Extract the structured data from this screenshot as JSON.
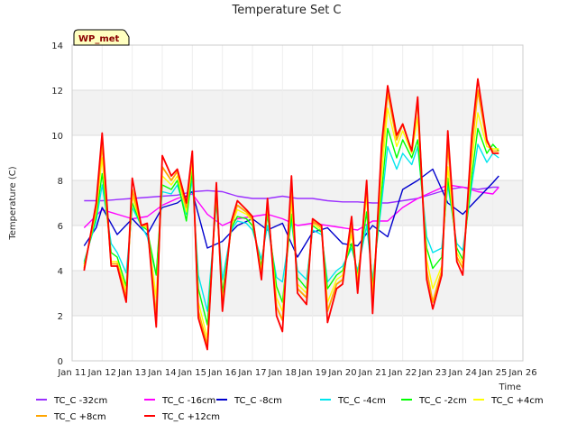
{
  "chart_data": {
    "type": "line",
    "title": "Temperature Set C",
    "xlabel": "Time",
    "ylabel": "Temperature (C)",
    "ylim": [
      0,
      14
    ],
    "xlim": [
      11,
      26
    ],
    "yticks": [
      0,
      2,
      4,
      6,
      8,
      10,
      12,
      14
    ],
    "xticks": [
      11,
      12,
      13,
      14,
      15,
      16,
      17,
      18,
      19,
      20,
      21,
      22,
      23,
      24,
      25,
      26
    ],
    "xtick_labels": [
      "Jan 11",
      "Jan 12",
      "Jan 13",
      "Jan 14",
      "Jan 15",
      "Jan 16",
      "Jan 17",
      "Jan 18",
      "Jan 19",
      "Jan 20",
      "Jan 21",
      "Jan 22",
      "Jan 23",
      "Jan 24",
      "Jan 25",
      "Jan 26"
    ],
    "grid": true,
    "legend_position": "bottom",
    "annotation": "WP_met",
    "series": [
      {
        "name": "TC_C -32cm",
        "color": "#9b30ff",
        "x": [
          11.4,
          12.0,
          13.0,
          14.0,
          14.5,
          15.0,
          15.5,
          16.0,
          16.5,
          17.0,
          17.5,
          18.0,
          18.5,
          19.0,
          19.5,
          20.0,
          20.5,
          21.0,
          21.5,
          22.0,
          22.5,
          23.0,
          23.5,
          24.0,
          24.5,
          25.0,
          25.2
        ],
        "y": [
          7.1,
          7.1,
          7.2,
          7.3,
          7.35,
          7.5,
          7.55,
          7.5,
          7.3,
          7.2,
          7.2,
          7.3,
          7.2,
          7.2,
          7.1,
          7.05,
          7.05,
          7.0,
          7.0,
          7.1,
          7.2,
          7.4,
          7.6,
          7.7,
          7.6,
          7.7,
          7.7
        ]
      },
      {
        "name": "TC_C -16cm",
        "color": "#ff00ff",
        "x": [
          11.4,
          12.0,
          12.5,
          13.0,
          13.5,
          14.0,
          14.5,
          15.0,
          15.5,
          16.0,
          16.5,
          17.0,
          17.5,
          18.0,
          18.5,
          19.0,
          19.5,
          20.0,
          20.5,
          21.0,
          21.5,
          22.0,
          22.5,
          23.0,
          23.5,
          24.0,
          24.5,
          25.0,
          25.2
        ],
        "y": [
          5.9,
          6.7,
          6.5,
          6.3,
          6.4,
          6.9,
          7.2,
          7.4,
          6.5,
          6.0,
          6.3,
          6.4,
          6.5,
          6.3,
          6.0,
          6.1,
          6.0,
          5.9,
          5.8,
          6.2,
          6.2,
          6.8,
          7.2,
          7.5,
          7.8,
          7.7,
          7.5,
          7.4,
          7.7
        ]
      },
      {
        "name": "TC_C -8cm",
        "color": "#0000cd",
        "x": [
          11.4,
          11.8,
          12.0,
          12.5,
          13.0,
          13.5,
          14.0,
          14.5,
          15.0,
          15.5,
          16.0,
          16.5,
          17.0,
          17.5,
          18.0,
          18.5,
          19.0,
          19.5,
          20.0,
          20.5,
          21.0,
          21.5,
          22.0,
          22.5,
          23.0,
          23.5,
          24.0,
          24.5,
          25.0,
          25.2
        ],
        "y": [
          5.1,
          5.9,
          6.8,
          5.6,
          6.3,
          5.6,
          6.8,
          7.0,
          7.5,
          5.0,
          5.3,
          6.0,
          6.3,
          5.8,
          6.1,
          4.6,
          5.7,
          5.9,
          5.2,
          5.1,
          6.0,
          5.5,
          7.6,
          8.0,
          8.5,
          7.0,
          6.5,
          7.2,
          7.9,
          8.2
        ]
      },
      {
        "name": "TC_C -4cm",
        "color": "#00e5ee",
        "x": [
          11.4,
          11.8,
          12.0,
          12.3,
          12.5,
          12.8,
          13.0,
          13.3,
          13.5,
          13.8,
          14.0,
          14.3,
          14.5,
          14.8,
          15.0,
          15.2,
          15.5,
          15.8,
          16.0,
          16.3,
          16.5,
          16.8,
          17.0,
          17.3,
          17.5,
          17.8,
          18.0,
          18.3,
          18.5,
          18.8,
          19.0,
          19.3,
          19.5,
          19.8,
          20.0,
          20.3,
          20.5,
          20.8,
          21.0,
          21.3,
          21.5,
          21.8,
          22.0,
          22.3,
          22.5,
          22.8,
          23.0,
          23.3,
          23.5,
          23.8,
          24.0,
          24.3,
          24.5,
          24.8,
          25.0,
          25.2
        ],
        "y": [
          4.4,
          6.2,
          7.8,
          5.2,
          4.8,
          3.9,
          6.8,
          6.0,
          5.5,
          3.8,
          7.5,
          7.4,
          7.8,
          6.5,
          8.0,
          3.8,
          2.2,
          7.0,
          3.6,
          5.8,
          6.2,
          6.1,
          5.8,
          4.5,
          6.0,
          3.7,
          3.5,
          6.2,
          4.0,
          3.6,
          5.8,
          5.6,
          3.5,
          4.0,
          4.2,
          5.0,
          4.0,
          6.0,
          3.6,
          7.0,
          9.5,
          8.5,
          9.2,
          8.7,
          9.5,
          5.5,
          4.8,
          5.0,
          7.8,
          5.2,
          4.9,
          7.8,
          9.6,
          8.8,
          9.2,
          9.0
        ]
      },
      {
        "name": "TC_C -2cm",
        "color": "#00ff00",
        "x": [
          11.4,
          11.8,
          12.0,
          12.3,
          12.5,
          12.8,
          13.0,
          13.3,
          13.5,
          13.8,
          14.0,
          14.3,
          14.5,
          14.8,
          15.0,
          15.2,
          15.5,
          15.8,
          16.0,
          16.3,
          16.5,
          16.8,
          17.0,
          17.3,
          17.5,
          17.8,
          18.0,
          18.3,
          18.5,
          18.8,
          19.0,
          19.3,
          19.5,
          19.8,
          20.0,
          20.3,
          20.5,
          20.8,
          21.0,
          21.3,
          21.5,
          21.8,
          22.0,
          22.3,
          22.5,
          22.8,
          23.0,
          23.3,
          23.5,
          23.8,
          24.0,
          24.3,
          24.5,
          24.8,
          25.0,
          25.2
        ],
        "y": [
          4.3,
          6.4,
          8.3,
          4.8,
          4.6,
          3.3,
          7.0,
          6.0,
          5.8,
          3.8,
          7.8,
          7.6,
          8.0,
          6.2,
          8.4,
          3.2,
          1.6,
          7.2,
          3.0,
          5.9,
          6.4,
          6.3,
          6.0,
          4.2,
          6.5,
          3.3,
          2.6,
          6.5,
          3.7,
          3.2,
          6.0,
          5.7,
          3.2,
          3.8,
          4.0,
          5.2,
          3.8,
          6.6,
          3.3,
          7.5,
          10.3,
          9.0,
          9.8,
          9.0,
          9.8,
          5.0,
          4.1,
          4.6,
          8.1,
          5.0,
          4.5,
          8.2,
          10.3,
          9.2,
          9.6,
          9.3
        ]
      },
      {
        "name": "TC_C +4cm",
        "color": "#ffff00",
        "x": [
          11.4,
          11.8,
          12.0,
          12.3,
          12.5,
          12.8,
          13.0,
          13.3,
          13.5,
          13.8,
          14.0,
          14.3,
          14.5,
          14.8,
          15.0,
          15.2,
          15.5,
          15.8,
          16.0,
          16.3,
          16.5,
          16.8,
          17.0,
          17.3,
          17.5,
          17.8,
          18.0,
          18.3,
          18.5,
          18.8,
          19.0,
          19.3,
          19.5,
          19.8,
          20.0,
          20.3,
          20.5,
          20.8,
          21.0,
          21.3,
          21.5,
          21.8,
          22.0,
          22.3,
          22.5,
          22.8,
          23.0,
          23.3,
          23.5,
          23.8,
          24.0,
          24.3,
          24.5,
          24.8,
          25.0,
          25.2
        ],
        "y": [
          4.2,
          6.6,
          9.0,
          4.4,
          4.4,
          3.1,
          7.3,
          6.0,
          5.9,
          2.8,
          8.2,
          7.8,
          8.2,
          6.6,
          8.8,
          2.6,
          1.0,
          7.5,
          2.6,
          6.0,
          6.7,
          6.5,
          6.2,
          4.0,
          6.8,
          2.8,
          2.2,
          7.0,
          3.4,
          3.0,
          6.1,
          5.8,
          2.6,
          3.6,
          3.8,
          5.6,
          3.6,
          7.3,
          3.0,
          8.2,
          11.2,
          9.5,
          10.2,
          9.2,
          10.8,
          4.5,
          3.2,
          4.2,
          8.6,
          4.8,
          4.3,
          8.8,
          11.0,
          9.5,
          9.4,
          9.4
        ]
      },
      {
        "name": "TC_C +8cm",
        "color": "#ffa500",
        "x": [
          11.4,
          11.8,
          12.0,
          12.3,
          12.5,
          12.8,
          13.0,
          13.3,
          13.5,
          13.8,
          14.0,
          14.3,
          14.5,
          14.8,
          15.0,
          15.2,
          15.5,
          15.8,
          16.0,
          16.3,
          16.5,
          16.8,
          17.0,
          17.3,
          17.5,
          17.8,
          18.0,
          18.3,
          18.5,
          18.8,
          19.0,
          19.3,
          19.5,
          19.8,
          20.0,
          20.3,
          20.5,
          20.8,
          21.0,
          21.3,
          21.5,
          21.8,
          22.0,
          22.3,
          22.5,
          22.8,
          23.0,
          23.3,
          23.5,
          23.8,
          24.0,
          24.3,
          24.5,
          24.8,
          25.0,
          25.2
        ],
        "y": [
          4.1,
          6.8,
          9.6,
          4.3,
          4.3,
          2.8,
          7.6,
          6.0,
          6.0,
          2.0,
          8.6,
          8.0,
          8.4,
          6.8,
          9.1,
          2.2,
          0.7,
          7.7,
          2.4,
          6.1,
          6.9,
          6.6,
          6.3,
          3.8,
          7.0,
          2.4,
          1.8,
          7.6,
          3.2,
          2.8,
          6.2,
          5.9,
          2.2,
          3.4,
          3.6,
          6.0,
          3.3,
          7.8,
          2.6,
          9.0,
          11.9,
          9.8,
          10.5,
          9.3,
          11.5,
          4.0,
          2.6,
          4.0,
          9.6,
          4.6,
          4.1,
          9.4,
          12.0,
          9.7,
          9.3,
          9.3
        ]
      },
      {
        "name": "TC_C +12cm",
        "color": "#ff0000",
        "x": [
          11.4,
          11.8,
          12.0,
          12.3,
          12.5,
          12.8,
          13.0,
          13.3,
          13.5,
          13.8,
          14.0,
          14.3,
          14.5,
          14.8,
          15.0,
          15.2,
          15.5,
          15.8,
          16.0,
          16.3,
          16.5,
          16.8,
          17.0,
          17.3,
          17.5,
          17.8,
          18.0,
          18.3,
          18.5,
          18.8,
          19.0,
          19.3,
          19.5,
          19.8,
          20.0,
          20.3,
          20.5,
          20.8,
          21.0,
          21.3,
          21.5,
          21.8,
          22.0,
          22.3,
          22.5,
          22.8,
          23.0,
          23.3,
          23.5,
          23.8,
          24.0,
          24.3,
          24.5,
          24.8,
          25.0,
          25.2
        ],
        "y": [
          4.0,
          7.0,
          10.1,
          4.2,
          4.2,
          2.6,
          8.1,
          6.0,
          6.1,
          1.5,
          9.1,
          8.2,
          8.5,
          7.0,
          9.3,
          1.9,
          0.5,
          7.9,
          2.2,
          6.2,
          7.1,
          6.7,
          6.4,
          3.6,
          7.2,
          2.0,
          1.3,
          8.2,
          3.0,
          2.5,
          6.3,
          6.0,
          1.7,
          3.2,
          3.4,
          6.4,
          3.0,
          8.0,
          2.1,
          9.6,
          12.2,
          10.0,
          10.5,
          9.3,
          11.7,
          3.6,
          2.3,
          3.8,
          10.2,
          4.4,
          3.8,
          10.0,
          12.5,
          9.8,
          9.2,
          9.2
        ]
      }
    ]
  }
}
